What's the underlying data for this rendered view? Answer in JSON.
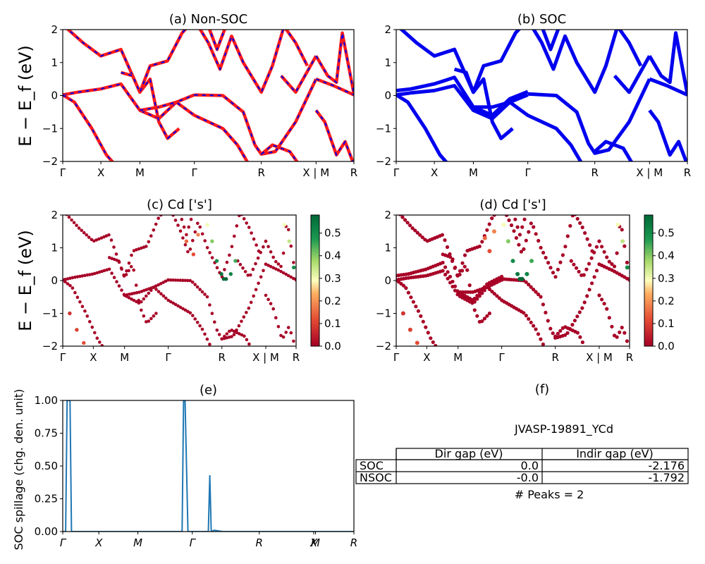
{
  "figure": {
    "ylabel": "E − E_f (eV)",
    "colors": {
      "blue": "#0000ee",
      "red": "#ff1a1a",
      "spill": "#1f77b4"
    }
  },
  "kpath": {
    "labels": [
      "Γ",
      "X",
      "M",
      "Γ",
      "R",
      "X | M",
      "R"
    ],
    "positions": [
      0,
      0.131,
      0.265,
      0.452,
      0.682,
      0.87,
      1.0
    ]
  },
  "chart_data": [
    {
      "type": "line",
      "title": "(a) Non-SOC",
      "ylim": [
        -2,
        2
      ],
      "yticks": [
        "2",
        "1",
        "0",
        "−1",
        "−2"
      ],
      "xtick_labels": [
        "Γ",
        "X",
        "M",
        "Γ",
        "R",
        "X | M",
        "R"
      ],
      "style": "red line with blue dashes",
      "series": [
        {
          "x": [
            0,
            0.05,
            0.13,
            0.2,
            0.265,
            0.33,
            0.39,
            0.452
          ],
          "y": [
            0.02,
            0.1,
            0.2,
            0.35,
            -0.45,
            -0.7,
            -0.2,
            0.02
          ]
        },
        {
          "x": [
            0.452,
            0.55,
            0.62,
            0.66,
            0.682,
            0.73,
            0.8,
            0.87
          ],
          "y": [
            0.02,
            0.0,
            -0.5,
            -1.5,
            -1.78,
            -1.7,
            -0.8,
            0.5
          ]
        },
        {
          "x": [
            0.87,
            0.93,
            1.0
          ],
          "y": [
            0.5,
            0.3,
            0.02
          ]
        },
        {
          "x": [
            0,
            0.04,
            0.1,
            0.15,
            0.2
          ],
          "y": [
            0.02,
            -0.2,
            -1.0,
            -1.8,
            -2.3
          ]
        },
        {
          "x": [
            0.265,
            0.33,
            0.39,
            0.452,
            0.55,
            0.6,
            0.64
          ],
          "y": [
            -0.45,
            -0.35,
            -0.2,
            -0.6,
            -1.0,
            -1.5,
            -2.1
          ]
        },
        {
          "x": [
            0.006,
            0.07,
            0.131,
            0.2,
            0.265,
            0.3,
            0.33,
            0.36,
            0.4
          ],
          "y": [
            2.1,
            1.6,
            1.2,
            1.4,
            0.1,
            0.5,
            -0.8,
            -1.3,
            -1.0
          ]
        },
        {
          "x": [
            0.2,
            0.24,
            0.265,
            0.3,
            0.36,
            0.41,
            0.452
          ],
          "y": [
            0.7,
            0.6,
            0.1,
            0.9,
            1.05,
            1.9,
            2.3
          ]
        },
        {
          "x": [
            0.452,
            0.5,
            0.54,
            0.58,
            0.62,
            0.682,
            0.72,
            0.76,
            0.8,
            0.84
          ],
          "y": [
            2.3,
            1.6,
            0.8,
            1.8,
            1.0,
            0.1,
            0.9,
            2.1,
            1.6,
            0.9
          ]
        },
        {
          "x": [
            0.5,
            0.53,
            0.56
          ],
          "y": [
            2.1,
            1.4,
            2.1
          ]
        },
        {
          "x": [
            0.75,
            0.8,
            0.87
          ],
          "y": [
            0.6,
            0.1,
            1.2
          ]
        },
        {
          "x": [
            0.87,
            0.9,
            0.94,
            0.97,
            1.0
          ],
          "y": [
            -0.45,
            -0.8,
            -1.8,
            -1.4,
            -2.1
          ]
        },
        {
          "x": [
            0.87,
            0.91,
            0.94,
            0.96,
            1.0
          ],
          "y": [
            1.2,
            0.6,
            0.4,
            1.9,
            0.05
          ]
        },
        {
          "x": [
            0.682,
            0.72,
            0.78,
            0.82
          ],
          "y": [
            -1.78,
            -1.5,
            -1.7,
            -2.2
          ]
        }
      ]
    },
    {
      "type": "line",
      "title": "(b) SOC",
      "ylim": [
        -2,
        2
      ],
      "yticks": [
        "2",
        "1",
        "0",
        "−1",
        "−2"
      ],
      "xtick_labels": [
        "Γ",
        "X",
        "M",
        "Γ",
        "R",
        "X | M",
        "R"
      ],
      "style": "thick blue split bands",
      "series": [
        {
          "x": [
            0,
            0.05,
            0.13,
            0.2,
            0.265,
            0.33,
            0.39,
            0.452
          ],
          "y": [
            0.15,
            0.2,
            0.35,
            0.55,
            -0.35,
            -0.6,
            -0.1,
            0.12
          ]
        },
        {
          "x": [
            0,
            0.05,
            0.13,
            0.2,
            0.265,
            0.33,
            0.39,
            0.452
          ],
          "y": [
            0.02,
            0.08,
            0.15,
            0.3,
            -0.45,
            -0.7,
            -0.2,
            0.02
          ]
        },
        {
          "x": [
            0.452,
            0.55,
            0.62,
            0.66,
            0.682,
            0.73,
            0.8,
            0.87
          ],
          "y": [
            0.05,
            0.0,
            -0.5,
            -1.45,
            -1.75,
            -1.65,
            -0.8,
            0.5
          ]
        },
        {
          "x": [
            0.87,
            0.93,
            1.0
          ],
          "y": [
            0.5,
            0.3,
            0.02
          ]
        },
        {
          "x": [
            0,
            0.04,
            0.1,
            0.15,
            0.2
          ],
          "y": [
            0.02,
            -0.2,
            -1.0,
            -1.8,
            -2.3
          ]
        },
        {
          "x": [
            0.265,
            0.33,
            0.39,
            0.452,
            0.55,
            0.6,
            0.64
          ],
          "y": [
            -0.35,
            -0.35,
            -0.2,
            -0.6,
            -1.0,
            -1.5,
            -2.1
          ]
        },
        {
          "x": [
            0.006,
            0.07,
            0.131,
            0.2,
            0.265,
            0.3,
            0.33,
            0.36,
            0.4
          ],
          "y": [
            2.1,
            1.6,
            1.2,
            1.4,
            0.1,
            0.5,
            -0.8,
            -1.3,
            -1.0
          ]
        },
        {
          "x": [
            0.2,
            0.24,
            0.265,
            0.3,
            0.36,
            0.41,
            0.452
          ],
          "y": [
            0.8,
            0.7,
            0.1,
            0.9,
            1.05,
            1.9,
            2.3
          ]
        },
        {
          "x": [
            0.452,
            0.5,
            0.54,
            0.58,
            0.62,
            0.682,
            0.72,
            0.76,
            0.8,
            0.84
          ],
          "y": [
            2.3,
            1.6,
            0.8,
            1.8,
            1.0,
            0.1,
            0.9,
            2.1,
            1.6,
            0.9
          ]
        },
        {
          "x": [
            0.5,
            0.53,
            0.56
          ],
          "y": [
            2.1,
            1.4,
            2.1
          ]
        },
        {
          "x": [
            0.75,
            0.8,
            0.87
          ],
          "y": [
            0.6,
            0.1,
            1.2
          ]
        },
        {
          "x": [
            0.87,
            0.9,
            0.94,
            0.97,
            1.0
          ],
          "y": [
            -0.45,
            -0.8,
            -1.8,
            -1.4,
            -2.1
          ]
        },
        {
          "x": [
            0.87,
            0.91,
            0.94,
            0.96,
            1.0
          ],
          "y": [
            1.2,
            0.6,
            0.4,
            1.9,
            0.05
          ]
        },
        {
          "x": [
            0.682,
            0.72,
            0.78,
            0.82
          ],
          "y": [
            -1.7,
            -1.4,
            -1.6,
            -2.2
          ]
        }
      ]
    },
    {
      "type": "scatter",
      "title": "(c)  Cd ['s']",
      "ylim": [
        -2,
        2
      ],
      "yticks": [
        "2",
        "1",
        "0",
        "−1",
        "−2"
      ],
      "xtick_labels": [
        "Γ",
        "X",
        "M",
        "Γ",
        "R",
        "X | M",
        "R"
      ],
      "colorbar": {
        "ticks": [
          "0.0",
          "0.1",
          "0.2",
          "0.3",
          "0.4",
          "0.5"
        ],
        "range": [
          0,
          0.58
        ],
        "colormap": "RdYlGn"
      },
      "highlights": [
        {
          "x": [
            0.03,
            0.06,
            0.09
          ],
          "y": [
            -1.0,
            -1.5,
            -1.9
          ],
          "w": [
            0.08,
            0.1,
            0.12
          ]
        },
        {
          "x": [
            0.53,
            0.56,
            0.58
          ],
          "y": [
            1.2,
            0.8,
            1.4
          ],
          "w": [
            0.15,
            0.12,
            0.18
          ]
        },
        {
          "x": [
            0.62,
            0.64,
            0.66,
            0.68,
            0.69,
            0.7,
            0.72,
            0.74
          ],
          "y": [
            1.7,
            1.2,
            0.6,
            0.2,
            0.05,
            0.05,
            0.2,
            0.6
          ],
          "w": [
            0.3,
            0.4,
            0.5,
            0.55,
            0.58,
            0.58,
            0.52,
            0.45
          ]
        },
        {
          "x": [
            0.95,
            0.97,
            0.99
          ],
          "y": [
            1.7,
            1.2,
            0.4
          ],
          "w": [
            0.3,
            0.35,
            0.5
          ]
        }
      ]
    },
    {
      "type": "scatter",
      "title": "(d) Cd ['s']",
      "ylim": [
        -2,
        2
      ],
      "yticks": [
        "2",
        "1",
        "0",
        "−1",
        "−2"
      ],
      "xtick_labels": [
        "Γ",
        "X",
        "M",
        "Γ",
        "R",
        "X | M",
        "R"
      ],
      "colorbar": {
        "ticks": [
          "0.0",
          "0.1",
          "0.2",
          "0.3",
          "0.4",
          "0.5"
        ],
        "range": [
          0,
          0.58
        ],
        "colormap": "RdYlGn"
      },
      "highlights": [
        {
          "x": [
            0.03,
            0.06,
            0.09
          ],
          "y": [
            -1.0,
            -1.5,
            -1.9
          ],
          "w": [
            0.08,
            0.1,
            0.12
          ]
        },
        {
          "x": [
            0.38,
            0.4,
            0.42
          ],
          "y": [
            1.3,
            0.9,
            1.5
          ],
          "w": [
            0.15,
            0.12,
            0.18
          ]
        },
        {
          "x": [
            0.46,
            0.48,
            0.5,
            0.52,
            0.53,
            0.54,
            0.56,
            0.58
          ],
          "y": [
            1.7,
            1.2,
            0.6,
            0.2,
            0.05,
            0.05,
            0.2,
            0.6
          ],
          "w": [
            0.3,
            0.4,
            0.5,
            0.55,
            0.58,
            0.58,
            0.52,
            0.45
          ]
        },
        {
          "x": [
            0.95,
            0.97,
            0.99
          ],
          "y": [
            1.7,
            1.2,
            0.4
          ],
          "w": [
            0.3,
            0.35,
            0.5
          ]
        }
      ]
    },
    {
      "type": "line",
      "title": "(e)",
      "ylabel": "SOC spillage (chg. den. unit)",
      "ylim": [
        0,
        1
      ],
      "yticks": [
        "1.00",
        "0.75",
        "0.50",
        "0.25",
        "0.00"
      ],
      "xtick_labels": [
        "Γ",
        "X",
        "M",
        "Γ",
        "R",
        "X",
        "M",
        "R"
      ],
      "x": [
        0,
        0.01,
        0.015,
        0.02,
        0.025,
        0.03,
        0.04,
        0.1,
        0.2,
        0.3,
        0.4,
        0.41,
        0.415,
        0.42,
        0.43,
        0.44,
        0.5,
        0.505,
        0.51,
        0.52,
        0.55,
        0.6,
        0.7,
        0.8,
        0.9,
        1.0
      ],
      "y": [
        0,
        0.0,
        1.0,
        1.0,
        1.0,
        0.0,
        0.0,
        0.0,
        0.0,
        0.0,
        0.0,
        0.0,
        1.0,
        1.0,
        0.0,
        0.0,
        0.0,
        0.43,
        0.0,
        0.01,
        0.0,
        0.0,
        0.0,
        0.0,
        0.0,
        0.0
      ]
    }
  ],
  "panel_f": {
    "title": "(f)",
    "material": "JVASP-19891_YCd",
    "table": {
      "headers": [
        "",
        "Dir gap (eV)",
        "Indir gap (eV)"
      ],
      "rows": [
        [
          "SOC",
          "0.0",
          "-2.176"
        ],
        [
          "NSOC",
          "-0.0",
          "-1.792"
        ]
      ]
    },
    "peaks": "# Peaks = 2"
  }
}
